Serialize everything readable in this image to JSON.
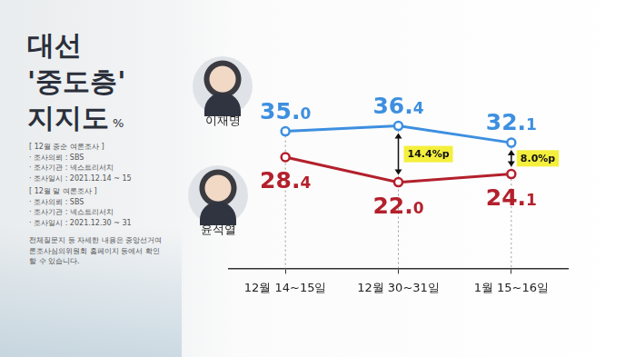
{
  "chart_data": {
    "type": "line",
    "title": "대선 '중도층' 지지도",
    "ylabel": "%",
    "categories": [
      "12월 14~15일",
      "12월 30~31일",
      "1월 15~16일"
    ],
    "series": [
      {
        "name": "이재명",
        "color": "#3d8fe0",
        "values": [
          35.0,
          36.4,
          32.1
        ],
        "value_labels": [
          "35.0",
          "36.4",
          "32.1"
        ]
      },
      {
        "name": "윤석열",
        "color": "#b3202c",
        "values": [
          28.4,
          22.0,
          24.1
        ],
        "value_labels": [
          "28.4",
          "22.0",
          "24.1"
        ]
      }
    ],
    "ylim": [
      0,
      50
    ],
    "tick_labels": "x",
    "data_labels": true,
    "marker": "circle",
    "annotations": [
      {
        "text": "14.4%p",
        "category": "12월 30~31일"
      },
      {
        "text": "8.0%p",
        "category": "1월 15~16일"
      }
    ],
    "notes": [
      "[ 12월 중순 여론조사 ]",
      "· 조사의뢰 : SBS",
      "· 조사기관 : 넥스트리서치",
      "· 조사일시 : 2021.12.14 ~ 15",
      "[ 12월 말 여론조사 ]",
      "· 조사의뢰 : SBS",
      "· 조사기관 : 넥스트리서치",
      "· 조사일시 : 2021.12.30 ~ 31",
      "전체질문지 등 자세한 내용은 중앙선거여론조사심의위원회 홈페이지 등에서 확인할 수 있습니다."
    ]
  }
}
